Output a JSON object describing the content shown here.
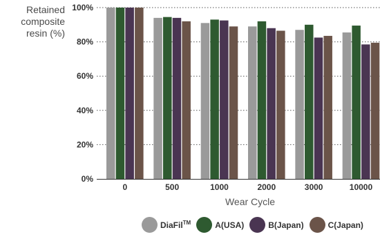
{
  "chart_data": {
    "type": "bar",
    "title": "",
    "ylabel_lines": [
      "Retained",
      "composite",
      "resin  (%)"
    ],
    "xlabel": "Wear Cycle",
    "categories": [
      "0",
      "500",
      "1000",
      "2000",
      "3000",
      "10000"
    ],
    "ylim": [
      0,
      100
    ],
    "yticks": [
      "0%",
      "20%",
      "40%",
      "60%",
      "80%",
      "100%"
    ],
    "grid": "horizontal dotted",
    "legend_position": "bottom-right",
    "series": [
      {
        "name": "DiaFil",
        "superscript": "TM",
        "color": "#9a9a9a",
        "values": [
          100,
          94,
          91,
          89,
          87,
          85.5
        ]
      },
      {
        "name": "A(USA)",
        "color": "#2e5a30",
        "values": [
          100,
          94.5,
          93,
          92,
          90,
          89.5
        ]
      },
      {
        "name": "B(Japan)",
        "color": "#4a3552",
        "values": [
          100,
          94,
          92.5,
          88,
          82.5,
          78.5
        ]
      },
      {
        "name": "C(Japan)",
        "color": "#6b5449",
        "values": [
          100,
          92,
          89,
          86.5,
          83.5,
          79.5
        ]
      }
    ]
  }
}
